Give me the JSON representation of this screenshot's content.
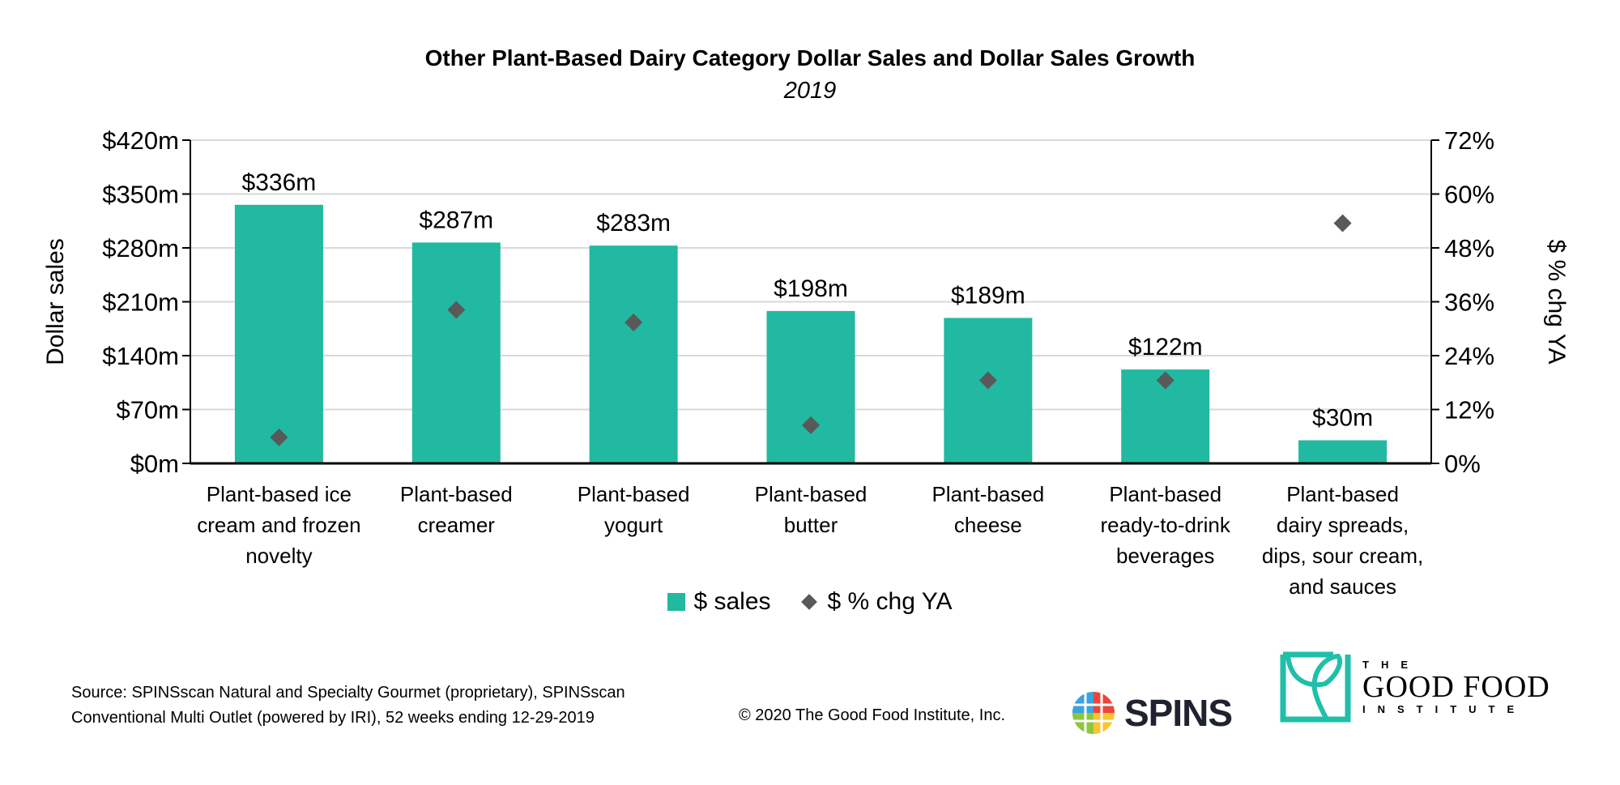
{
  "chart_data": {
    "type": "bar",
    "title": "Other Plant-Based Dairy Category Dollar Sales and Dollar Sales Growth",
    "subtitle": "2019",
    "ylabel": "Dollar sales",
    "y2label": "$ % chg YA",
    "ylim": [
      0,
      420
    ],
    "y2lim": [
      0,
      72
    ],
    "yticks": [
      "$0m",
      "$70m",
      "$140m",
      "$210m",
      "$280m",
      "$350m",
      "$420m"
    ],
    "y2ticks": [
      "0%",
      "12%",
      "24%",
      "36%",
      "48%",
      "60%",
      "72%"
    ],
    "grid": true,
    "categories": [
      [
        "Plant-based ice",
        "cream and frozen",
        "novelty"
      ],
      [
        "Plant-based",
        "creamer"
      ],
      [
        "Plant-based",
        "yogurt"
      ],
      [
        "Plant-based",
        "butter"
      ],
      [
        "Plant-based",
        "cheese"
      ],
      [
        "Plant-based",
        "ready-to-drink",
        "beverages"
      ],
      [
        "Plant-based",
        "dairy spreads,",
        "dips, sour cream,",
        "and sauces"
      ]
    ],
    "series": [
      {
        "name": "$ sales",
        "type": "bar",
        "axis": "left",
        "color": "#21b9a1",
        "values": [
          336,
          287,
          283,
          198,
          189,
          122,
          30
        ],
        "labels": [
          "$336m",
          "$287m",
          "$283m",
          "$198m",
          "$189m",
          "$122m",
          "$30m"
        ]
      },
      {
        "name": "$ % chg YA",
        "type": "scatter",
        "axis": "right",
        "color": "#595959",
        "values": [
          5.8,
          34.2,
          31.4,
          8.5,
          18.5,
          18.5,
          53.5
        ]
      }
    ],
    "legend": "bottom"
  },
  "footer": {
    "source_lines": [
      "Source: SPINSscan Natural and Specialty Gourmet (proprietary), SPINSscan",
      "Conventional Multi Outlet (powered by IRI), 52 weeks ending 12-29-2019"
    ],
    "copyright": "© 2020 The Good Food Institute, Inc.",
    "spins_logo": "SPINS",
    "gfi_logo": {
      "the": "THE",
      "good_food": "GOOD FOOD",
      "institute": "INSTITUTE"
    }
  }
}
